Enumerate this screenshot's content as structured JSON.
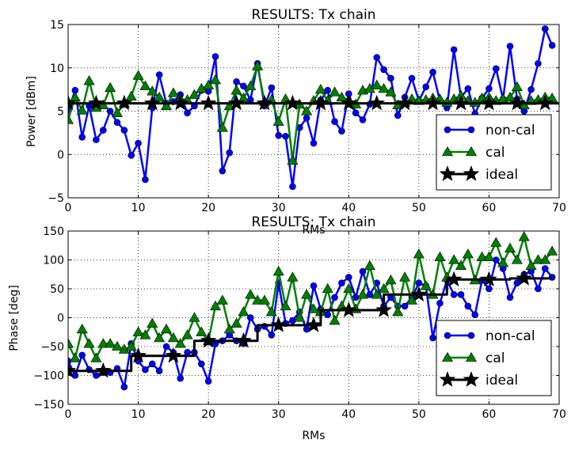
{
  "chart_data": [
    {
      "type": "line",
      "title": "RESULTS: Tx chain",
      "xlabel": "RMs",
      "ylabel": "Power [dBm]",
      "xlim": [
        0,
        70
      ],
      "ylim": [
        -5,
        15
      ],
      "xticks": [
        0,
        10,
        20,
        30,
        40,
        50,
        60,
        70
      ],
      "yticks": [
        -5,
        0,
        5,
        10,
        15
      ],
      "grid": true,
      "legend_position": "bottom-right",
      "series": [
        {
          "name": "non-cal",
          "color": "#0000ff",
          "marker": "circle",
          "x": [
            0,
            1,
            2,
            3,
            4,
            5,
            6,
            7,
            8,
            9,
            10,
            11,
            12,
            13,
            14,
            15,
            16,
            17,
            18,
            19,
            20,
            21,
            22,
            23,
            24,
            25,
            26,
            27,
            28,
            29,
            30,
            31,
            32,
            33,
            34,
            35,
            36,
            37,
            38,
            39,
            40,
            41,
            42,
            43,
            44,
            45,
            46,
            47,
            48,
            49,
            50,
            51,
            52,
            53,
            54,
            55,
            56,
            57,
            58,
            59,
            60,
            61,
            62,
            63,
            64,
            65,
            66,
            67,
            68,
            69
          ],
          "values": [
            5.0,
            7.4,
            2.0,
            5.6,
            1.7,
            2.8,
            5.0,
            3.7,
            2.8,
            -0.1,
            1.3,
            -2.9,
            5.4,
            9.2,
            5.9,
            6.1,
            6.9,
            4.8,
            5.6,
            7.4,
            7.3,
            11.3,
            -1.9,
            0.2,
            8.4,
            7.9,
            6.3,
            10.5,
            5.6,
            7.7,
            2.2,
            2.1,
            -3.7,
            3.1,
            4.2,
            1.3,
            6.3,
            7.4,
            3.8,
            2.7,
            7.0,
            4.8,
            4.0,
            5.8,
            11.2,
            9.8,
            8.8,
            4.5,
            6.6,
            8.8,
            6.2,
            7.8,
            9.5,
            6.2,
            5.4,
            12.1,
            6.6,
            7.6,
            4.7,
            6.5,
            7.6,
            9.9,
            6.4,
            12.5,
            6.4,
            5.0,
            7.5,
            10.5,
            14.5,
            12.6
          ]
        },
        {
          "name": "cal",
          "color": "#008000",
          "marker": "triangle",
          "x": [
            0,
            1,
            2,
            3,
            4,
            5,
            6,
            7,
            8,
            9,
            10,
            11,
            12,
            13,
            14,
            15,
            16,
            17,
            18,
            19,
            20,
            21,
            22,
            23,
            24,
            25,
            26,
            27,
            28,
            29,
            30,
            31,
            32,
            33,
            34,
            35,
            36,
            37,
            38,
            39,
            40,
            41,
            42,
            43,
            44,
            45,
            46,
            47,
            48,
            49,
            50,
            51,
            52,
            53,
            54,
            55,
            56,
            57,
            58,
            59,
            60,
            61,
            62,
            63,
            64,
            65,
            66,
            67,
            68,
            69
          ],
          "values": [
            4.0,
            6.6,
            5.1,
            8.5,
            5.4,
            5.7,
            7.7,
            4.8,
            5.9,
            6.7,
            9.1,
            7.9,
            7.3,
            6.6,
            5.6,
            7.1,
            6.4,
            6.3,
            6.9,
            7.6,
            8.0,
            8.6,
            3.1,
            5.6,
            7.4,
            6.5,
            7.9,
            10.2,
            6.1,
            6.3,
            3.8,
            6.4,
            -0.7,
            5.8,
            5.0,
            6.2,
            7.5,
            6.2,
            7.2,
            6.6,
            6.3,
            5.8,
            7.4,
            7.6,
            8.0,
            7.6,
            7.2,
            5.7,
            6.0,
            6.4,
            6.2,
            6.3,
            6.5,
            6.4,
            6.0,
            6.4,
            6.8,
            6.2,
            6.0,
            6.5,
            6.6,
            6.2,
            6.4,
            6.6,
            7.8,
            5.7,
            6.2,
            6.3,
            6.6,
            6.5
          ]
        },
        {
          "name": "ideal",
          "color": "#000000",
          "marker": "star",
          "x": [
            0,
            70
          ],
          "values": [
            5.9,
            5.9
          ],
          "marker_x": [
            0,
            4,
            8,
            12,
            16,
            20,
            24,
            28,
            32,
            36,
            40,
            44,
            48,
            52,
            56,
            60,
            64,
            68
          ]
        }
      ]
    },
    {
      "type": "line",
      "title": "RESULTS: Tx chain",
      "xlabel": "RMs",
      "ylabel": "Phase [deg]",
      "xlim": [
        0,
        70
      ],
      "ylim": [
        -150,
        150
      ],
      "xticks": [
        0,
        10,
        20,
        30,
        40,
        50,
        60,
        70
      ],
      "yticks": [
        -150,
        -100,
        -50,
        0,
        50,
        100,
        150
      ],
      "grid": true,
      "legend_position": "bottom-right",
      "series": [
        {
          "name": "non-cal",
          "color": "#0000ff",
          "marker": "circle",
          "x": [
            0,
            1,
            2,
            3,
            4,
            5,
            6,
            7,
            8,
            9,
            10,
            11,
            12,
            13,
            14,
            15,
            16,
            17,
            18,
            19,
            20,
            21,
            22,
            23,
            24,
            25,
            26,
            27,
            28,
            29,
            30,
            31,
            32,
            33,
            34,
            35,
            36,
            37,
            38,
            39,
            40,
            41,
            42,
            43,
            44,
            45,
            46,
            47,
            48,
            49,
            50,
            51,
            52,
            53,
            54,
            55,
            56,
            57,
            58,
            59,
            60,
            61,
            62,
            63,
            64,
            65,
            66,
            67,
            68,
            69
          ],
          "values": [
            -75,
            -100,
            -65,
            -90,
            -100,
            -95,
            -95,
            -88,
            -120,
            -45,
            -75,
            -90,
            -80,
            -92,
            -50,
            -60,
            -105,
            -60,
            -60,
            -80,
            -110,
            -45,
            -40,
            -30,
            -40,
            -45,
            0,
            -20,
            -15,
            -30,
            60,
            -10,
            -5,
            10,
            -20,
            55,
            15,
            5,
            35,
            60,
            70,
            35,
            80,
            40,
            60,
            20,
            35,
            20,
            20,
            35,
            60,
            55,
            -35,
            25,
            65,
            40,
            40,
            20,
            5,
            65,
            50,
            100,
            85,
            35,
            60,
            75,
            80,
            50,
            85,
            70
          ]
        },
        {
          "name": "cal",
          "color": "#008000",
          "marker": "triangle",
          "x": [
            0,
            1,
            2,
            3,
            4,
            5,
            6,
            7,
            8,
            9,
            10,
            11,
            12,
            13,
            14,
            15,
            16,
            17,
            18,
            19,
            20,
            21,
            22,
            23,
            24,
            25,
            26,
            27,
            28,
            29,
            30,
            31,
            32,
            33,
            34,
            35,
            36,
            37,
            38,
            39,
            40,
            41,
            42,
            43,
            44,
            45,
            46,
            47,
            48,
            49,
            50,
            51,
            52,
            53,
            54,
            55,
            56,
            57,
            58,
            59,
            60,
            61,
            62,
            63,
            64,
            65,
            66,
            67,
            68,
            69
          ],
          "values": [
            -45,
            -70,
            -20,
            -45,
            -70,
            -45,
            -45,
            -50,
            -55,
            -50,
            -25,
            -30,
            -10,
            -35,
            -20,
            -35,
            -45,
            -30,
            0,
            -25,
            -40,
            20,
            30,
            -20,
            -10,
            10,
            40,
            30,
            30,
            10,
            80,
            20,
            70,
            0,
            40,
            15,
            10,
            50,
            -5,
            20,
            50,
            15,
            40,
            90,
            40,
            50,
            65,
            10,
            70,
            30,
            110,
            55,
            40,
            105,
            70,
            100,
            90,
            110,
            65,
            105,
            105,
            130,
            95,
            120,
            100,
            140,
            90,
            100,
            100,
            115
          ]
        },
        {
          "name": "ideal",
          "color": "#000000",
          "marker": "star",
          "x": [
            0,
            9,
            9,
            18,
            18,
            27,
            27,
            36,
            36,
            45,
            45,
            54,
            54,
            63,
            63,
            69
          ],
          "values": [
            -92,
            -92,
            -66,
            -66,
            -40,
            -40,
            -13,
            -13,
            13,
            13,
            40,
            40,
            66,
            66,
            68,
            68
          ],
          "marker_x": [
            0,
            5,
            10,
            15,
            20,
            25,
            30,
            35,
            40,
            45,
            50,
            55,
            60,
            65
          ]
        }
      ]
    }
  ]
}
